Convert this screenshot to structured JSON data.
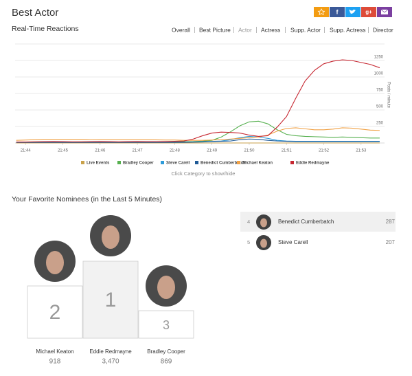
{
  "header": {
    "title": "Best Actor"
  },
  "nav": {
    "title": "Real-Time Reactions",
    "items": [
      "Overall",
      "Best Picture",
      "Actor",
      "Actress",
      "Supp. Actor",
      "Supp. Actress",
      "Director"
    ]
  },
  "chart_data": {
    "type": "line",
    "ylabel": "Posts / minute",
    "note": "Click Category to show/hide",
    "x": [
      1303.75,
      1304,
      1304.25,
      1304.5,
      1304.75,
      1305,
      1305.25,
      1305.5,
      1305.75,
      1306,
      1306.25,
      1306.5,
      1306.75,
      1307,
      1307.25,
      1307.5,
      1307.75,
      1308,
      1308.25,
      1308.5,
      1308.75,
      1309,
      1309.25,
      1309.5,
      1309.75,
      1310,
      1310.25,
      1310.5,
      1310.75,
      1311,
      1311.25,
      1311.5,
      1311.75,
      1312,
      1312.25,
      1312.5,
      1312.75,
      1313,
      1313.25,
      1313.5
    ],
    "xlim": [
      1303.72,
      1313.63
    ],
    "xticks": [
      {
        "value": 1304,
        "label": "21:44"
      },
      {
        "value": 1305,
        "label": "21:45"
      },
      {
        "value": 1306,
        "label": "21:46"
      },
      {
        "value": 1307,
        "label": "21:47"
      },
      {
        "value": 1308,
        "label": "21:48"
      },
      {
        "value": 1309,
        "label": "21:49"
      },
      {
        "value": 1310,
        "label": "21:50"
      },
      {
        "value": 1311,
        "label": "21:51"
      },
      {
        "value": 1312,
        "label": "21:52"
      },
      {
        "value": 1313,
        "label": "21:53"
      }
    ],
    "ylim": [
      0,
      1500
    ],
    "yticks": [
      250,
      500,
      750,
      1000,
      1250
    ],
    "grid": true,
    "series": [
      {
        "name": "Live Events",
        "color": "#c9a24b",
        "values": [
          0,
          0,
          0,
          0,
          0,
          0,
          0,
          0,
          0,
          0,
          0,
          0,
          0,
          0,
          0,
          0,
          0,
          0,
          0,
          0,
          0,
          0,
          0,
          0,
          0,
          0,
          0,
          0,
          0,
          0,
          0,
          0,
          0,
          0,
          0,
          0,
          0,
          0,
          0,
          0
        ]
      },
      {
        "name": "Bradley Cooper",
        "color": "#56b04f",
        "values": [
          15,
          15,
          16,
          18,
          18,
          16,
          15,
          16,
          18,
          18,
          16,
          15,
          16,
          18,
          18,
          16,
          18,
          20,
          20,
          22,
          28,
          40,
          90,
          170,
          260,
          320,
          330,
          290,
          200,
          130,
          110,
          100,
          95,
          90,
          85,
          90,
          85,
          80,
          75,
          75
        ]
      },
      {
        "name": "Steve Carell",
        "color": "#2e9bd9",
        "values": [
          12,
          12,
          12,
          12,
          12,
          12,
          12,
          12,
          12,
          12,
          12,
          12,
          12,
          12,
          12,
          12,
          12,
          12,
          14,
          16,
          20,
          24,
          30,
          50,
          80,
          100,
          90,
          70,
          40,
          30,
          25,
          25,
          25,
          25,
          25,
          25,
          25,
          25,
          25,
          25
        ]
      },
      {
        "name": "Benedict Cumberbatch",
        "color": "#1f5a96",
        "values": [
          8,
          8,
          8,
          8,
          8,
          8,
          8,
          8,
          8,
          8,
          8,
          8,
          8,
          8,
          8,
          8,
          8,
          8,
          10,
          12,
          15,
          20,
          25,
          30,
          50,
          60,
          55,
          40,
          30,
          25,
          20,
          20,
          20,
          20,
          20,
          20,
          20,
          20,
          20,
          20
        ]
      },
      {
        "name": "Michael Keaton",
        "color": "#f0a145",
        "values": [
          40,
          45,
          50,
          55,
          55,
          55,
          55,
          55,
          52,
          50,
          50,
          50,
          50,
          50,
          50,
          48,
          45,
          45,
          40,
          40,
          40,
          45,
          50,
          60,
          70,
          80,
          90,
          120,
          180,
          220,
          230,
          215,
          200,
          200,
          210,
          230,
          225,
          210,
          195,
          190
        ]
      },
      {
        "name": "Eddie Redmayne",
        "color": "#c62630",
        "values": [
          15,
          15,
          18,
          20,
          22,
          20,
          18,
          18,
          20,
          22,
          20,
          18,
          20,
          22,
          20,
          20,
          22,
          25,
          30,
          60,
          110,
          150,
          165,
          160,
          150,
          120,
          100,
          110,
          240,
          400,
          680,
          940,
          1100,
          1200,
          1240,
          1260,
          1250,
          1220,
          1190,
          1140
        ]
      }
    ]
  },
  "nominees": {
    "title": "Your Favorite Nominees (in the Last 5 Minutes)",
    "podium": [
      {
        "rank": 2,
        "name": "Michael Keaton",
        "votes": 918
      },
      {
        "rank": 1,
        "name": "Eddie Redmayne",
        "votes": 3470,
        "votes_label": "3,470"
      },
      {
        "rank": 3,
        "name": "Bradley Cooper",
        "votes": 869
      }
    ],
    "list": [
      {
        "rank": 4,
        "name": "Benedict Cumberbatch",
        "votes": 287
      },
      {
        "rank": 5,
        "name": "Steve Carell",
        "votes": 207
      }
    ]
  }
}
